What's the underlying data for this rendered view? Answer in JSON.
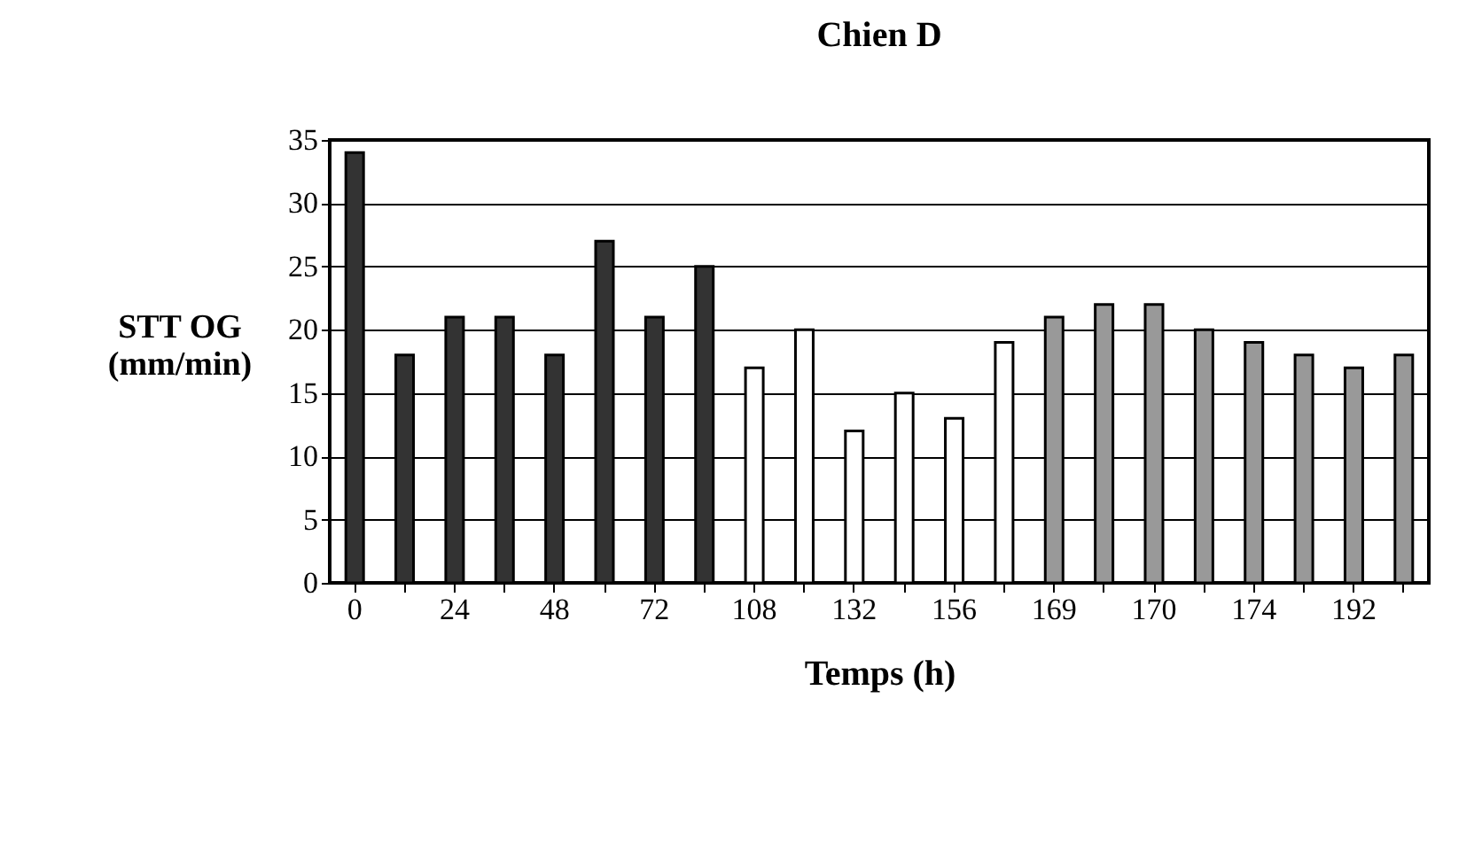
{
  "chart_data": {
    "type": "bar",
    "title": "Chien D",
    "xlabel": "Temps (h)",
    "ylabel": "STT OG\n(mm/min)",
    "categories": [
      "0",
      null,
      "24",
      null,
      "48",
      null,
      "72",
      null,
      "108",
      null,
      "132",
      null,
      "156",
      null,
      "169",
      null,
      "170",
      null,
      "174",
      null,
      "192",
      null
    ],
    "values": [
      34,
      18,
      21,
      21,
      18,
      27,
      21,
      25,
      17,
      20,
      12,
      15,
      13,
      19,
      21,
      22,
      22,
      20,
      19,
      18,
      17,
      18
    ],
    "colors": [
      "#333333",
      "#333333",
      "#333333",
      "#333333",
      "#333333",
      "#333333",
      "#333333",
      "#333333",
      "#ffffff",
      "#ffffff",
      "#ffffff",
      "#ffffff",
      "#ffffff",
      "#ffffff",
      "#999999",
      "#999999",
      "#999999",
      "#999999",
      "#999999",
      "#999999",
      "#999999",
      "#999999"
    ],
    "ylim": [
      0,
      35
    ],
    "yticks": [
      0,
      5,
      10,
      15,
      20,
      25,
      30,
      35
    ],
    "grid": "y"
  }
}
